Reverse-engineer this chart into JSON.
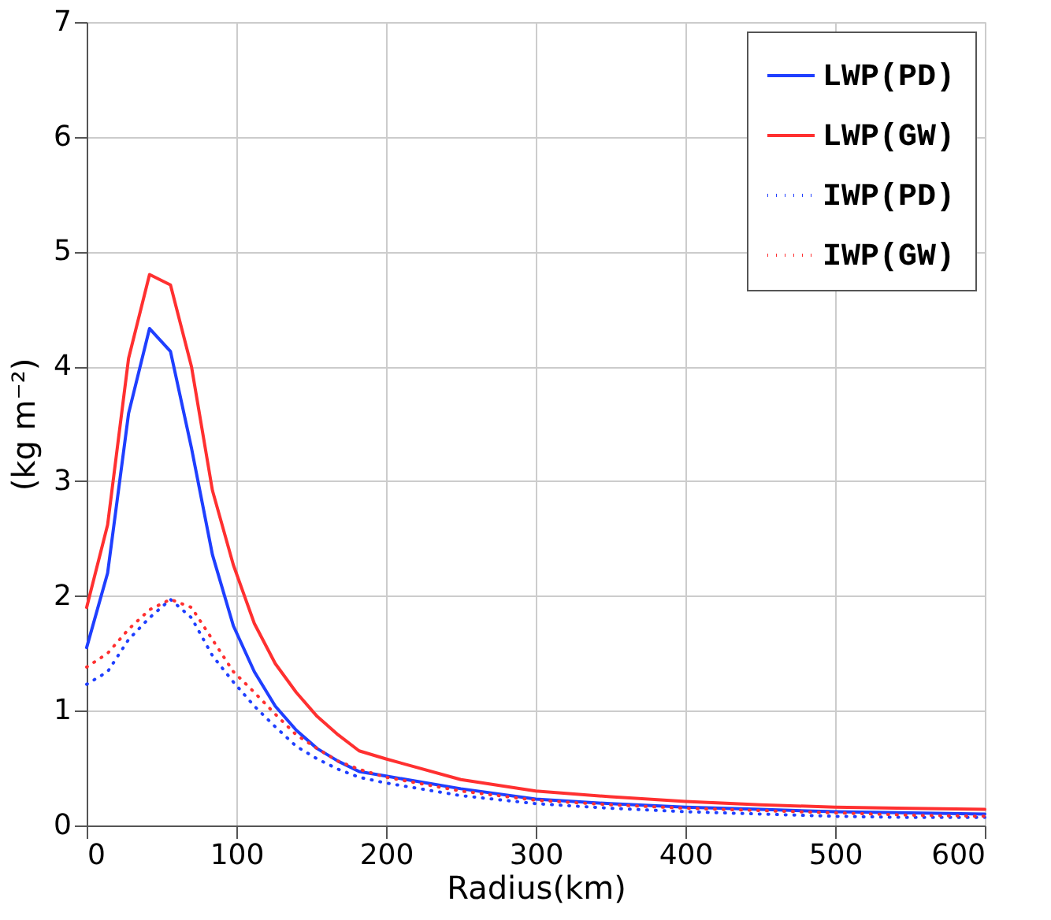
{
  "chart_data": {
    "type": "line",
    "xlabel": "Radius(km)",
    "ylabel": "(kg m⁻²)",
    "xlim": [
      0,
      600
    ],
    "xticks": [
      0,
      100,
      200,
      300,
      400,
      500,
      600
    ],
    "ylim": [
      0,
      7
    ],
    "yticks": [
      0,
      1,
      2,
      3,
      4,
      5,
      6,
      7
    ],
    "grid": true,
    "legend": "top right",
    "marker": "none",
    "series": [
      {
        "name": "LWP(PD)",
        "color": "#1f3fff",
        "line_style": "solid",
        "x": [
          0,
          14,
          28,
          42,
          56,
          70,
          84,
          98,
          112,
          126,
          140,
          154,
          168,
          182,
          200,
          250,
          300,
          350,
          400,
          450,
          500,
          550,
          600
        ],
        "values": [
          1.55,
          2.2,
          3.59,
          4.33,
          4.13,
          3.29,
          2.36,
          1.74,
          1.34,
          1.04,
          0.83,
          0.67,
          0.56,
          0.47,
          0.43,
          0.32,
          0.23,
          0.19,
          0.16,
          0.14,
          0.12,
          0.11,
          0.1
        ]
      },
      {
        "name": "LWP(GW)",
        "color": "#ff3030",
        "line_style": "solid",
        "x": [
          0,
          14,
          28,
          42,
          56,
          70,
          84,
          98,
          112,
          126,
          140,
          154,
          168,
          182,
          200,
          250,
          300,
          350,
          400,
          450,
          500,
          550,
          600
        ],
        "values": [
          1.9,
          2.62,
          4.07,
          4.8,
          4.71,
          4.0,
          2.92,
          2.27,
          1.76,
          1.41,
          1.16,
          0.95,
          0.79,
          0.65,
          0.58,
          0.4,
          0.3,
          0.25,
          0.21,
          0.18,
          0.16,
          0.15,
          0.14
        ]
      },
      {
        "name": "IWP(PD)",
        "color": "#1f3fff",
        "line_style": "dotted",
        "x": [
          0,
          14,
          28,
          42,
          56,
          70,
          84,
          98,
          112,
          126,
          140,
          154,
          168,
          182,
          200,
          250,
          300,
          350,
          400,
          450,
          500,
          550,
          600
        ],
        "values": [
          1.23,
          1.34,
          1.62,
          1.81,
          1.97,
          1.81,
          1.48,
          1.25,
          1.04,
          0.86,
          0.69,
          0.58,
          0.49,
          0.42,
          0.37,
          0.26,
          0.19,
          0.15,
          0.12,
          0.1,
          0.08,
          0.07,
          0.07
        ]
      },
      {
        "name": "IWP(GW)",
        "color": "#ff3030",
        "line_style": "dotted",
        "x": [
          0,
          14,
          28,
          42,
          56,
          70,
          84,
          98,
          112,
          126,
          140,
          154,
          168,
          182,
          200,
          250,
          300,
          350,
          400,
          450,
          500,
          550,
          600
        ],
        "values": [
          1.38,
          1.5,
          1.71,
          1.88,
          1.97,
          1.9,
          1.62,
          1.34,
          1.16,
          0.97,
          0.79,
          0.67,
          0.56,
          0.49,
          0.42,
          0.3,
          0.22,
          0.18,
          0.15,
          0.13,
          0.11,
          0.09,
          0.08
        ]
      }
    ]
  }
}
